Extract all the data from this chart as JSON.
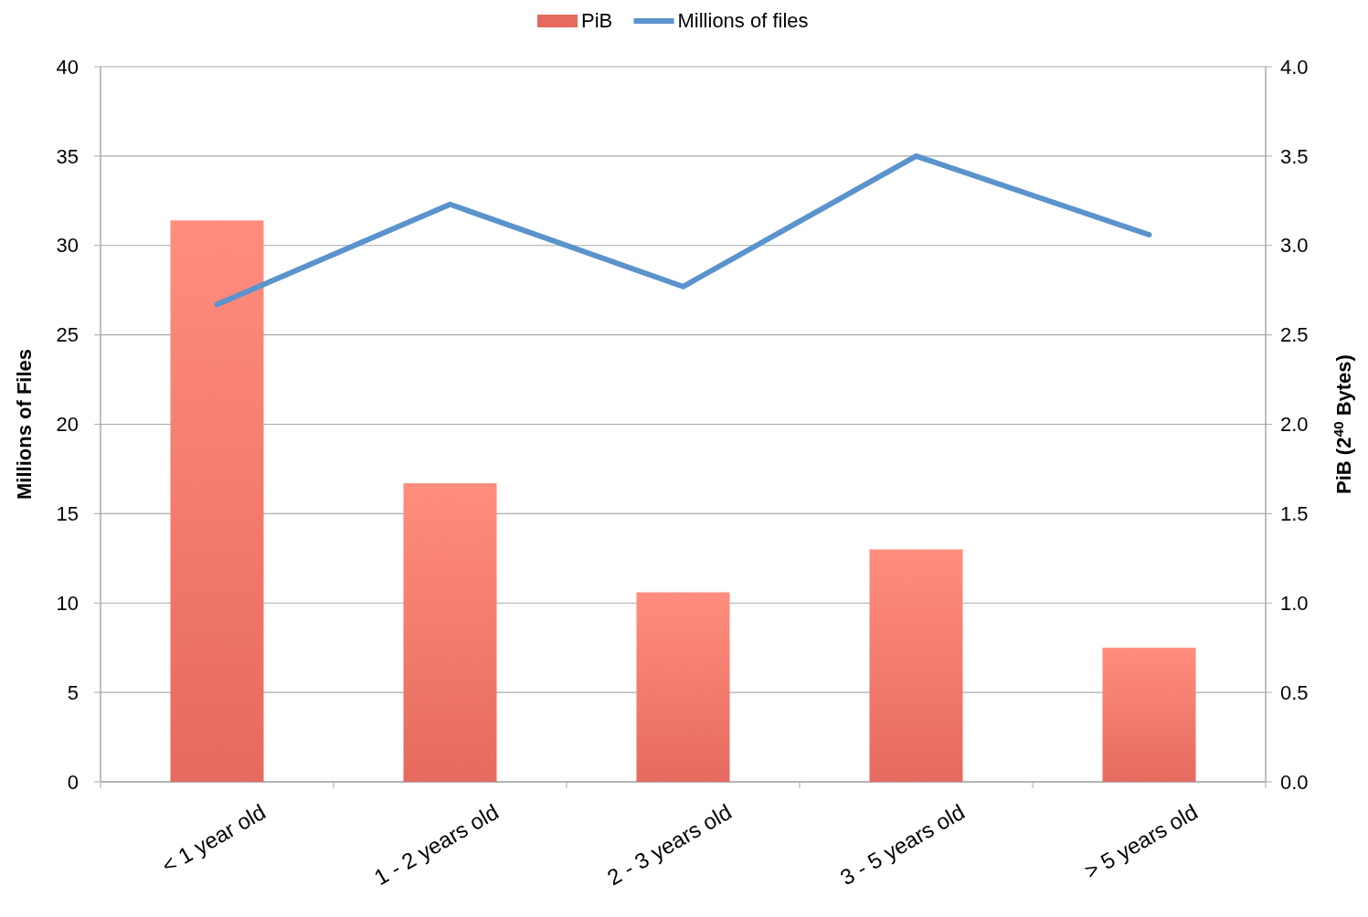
{
  "chart_data": {
    "type": "bar",
    "categories": [
      "< 1 year old",
      "1 - 2 years old",
      "2 - 3 years old",
      "3 - 5 years old",
      "> 5 years old"
    ],
    "series": [
      {
        "name": "PiB",
        "axis": "y2",
        "color": "#e66a5f",
        "values": [
          3.14,
          1.67,
          1.06,
          1.3,
          0.75
        ]
      },
      {
        "name": "Millions of files",
        "type": "line",
        "color": "#5b93cc",
        "values": [
          26.7,
          32.3,
          27.7,
          35.0,
          30.6
        ]
      }
    ],
    "ylabel": "Millions of Files",
    "y2label": "PiB (2$^{40}$ Bytes)",
    "ylim": [
      0,
      40
    ],
    "yticks": [
      0,
      5,
      10,
      15,
      20,
      25,
      30,
      35,
      40
    ],
    "y2lim": [
      0,
      4
    ],
    "y2ticks": [
      {
        "value": 0,
        "label": "0.0"
      },
      {
        "value": 0.5,
        "label": "0.5"
      },
      {
        "value": 1,
        "label": "1.0"
      },
      {
        "value": 1.5,
        "label": "1.5"
      },
      {
        "value": 2,
        "label": "2.0"
      },
      {
        "value": 2.5,
        "label": "2.5"
      },
      {
        "value": 3,
        "label": "3.0"
      },
      {
        "value": 3.5,
        "label": "3.5"
      },
      {
        "value": 4,
        "label": "4.0"
      }
    ],
    "grid": "y",
    "legend": "top",
    "marker": "none",
    "line_style": "solid"
  }
}
